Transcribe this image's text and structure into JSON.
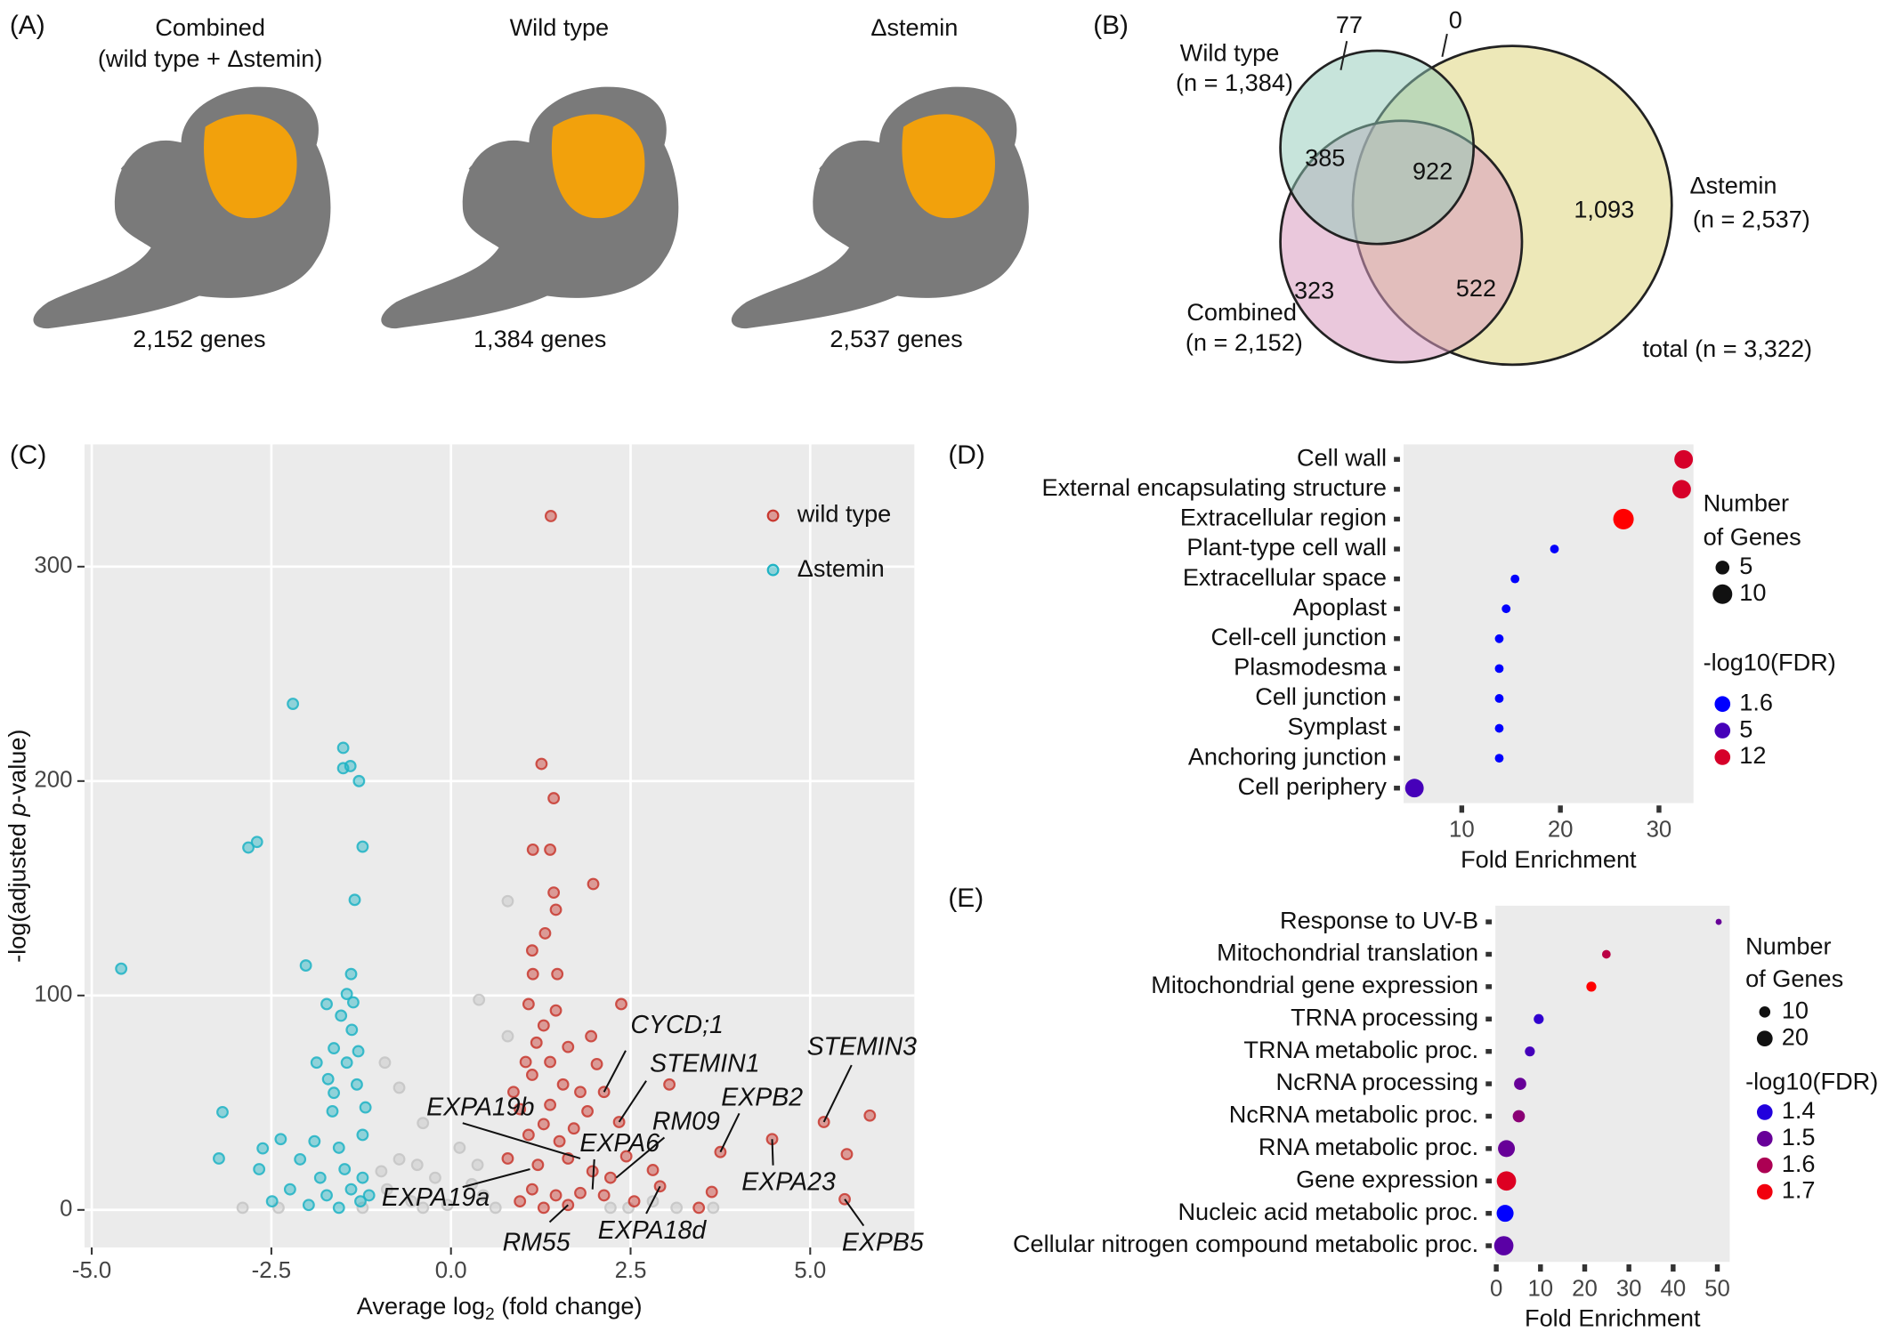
{
  "panel_labels": [
    "(A)",
    "(B)",
    "(C)",
    "(D)",
    "(E)"
  ],
  "umap": {
    "panels": [
      {
        "title": [
          "Combined",
          "(wild type + Δstemin)"
        ],
        "caption": "2,152 genes"
      },
      {
        "title": [
          "Wild type"
        ],
        "caption": "1,384 genes"
      },
      {
        "title": [
          "Δstemin"
        ],
        "caption": "2,537 genes"
      }
    ]
  },
  "venn": {
    "sets": [
      {
        "name": "Wild type",
        "count": "(n = 1,384)"
      },
      {
        "name": "Δstemin",
        "count": "(n = 2,537)"
      },
      {
        "name": "Combined",
        "count": "(n = 2,152)"
      }
    ],
    "regions": {
      "wt_only": "77",
      "wt_stemin": "0",
      "wt_combined": "385",
      "all": "922",
      "stemin_only": "1,093",
      "combined_only": "323",
      "combined_stemin": "522"
    },
    "total": "total (n = 3,322)"
  },
  "chart_data": [
    {
      "type": "scatter",
      "xlabel": [
        "Average log",
        "2",
        " (fold change)"
      ],
      "ylabel": [
        "-log(adjusted ",
        "p",
        "-value)"
      ],
      "xlim": [
        -5.1,
        6.45
      ],
      "ylim": [
        -17.5,
        357
      ],
      "xticks": [
        {
          "value": -5,
          "label": "-5.0"
        },
        {
          "value": -2.5,
          "label": "-2.5"
        },
        {
          "value": 0,
          "label": "0.0"
        },
        {
          "value": 2.5,
          "label": "2.5"
        },
        {
          "value": 5,
          "label": "5.0"
        }
      ],
      "yticks": [
        0,
        100,
        200,
        300
      ],
      "grid": true,
      "legend": "top-right",
      "series": [
        {
          "color": "#c4c4c4",
          "x": [
            0.79,
            0.39,
            0.79,
            -0.92,
            -0.72,
            -0.39,
            0.12,
            -0.72,
            -0.22,
            0.29,
            -2.9,
            -2.4,
            -0.89,
            -0.55,
            -0.05,
            0.45,
            0.62,
            2.47,
            3.14,
            3.65,
            -1.23,
            -0.39,
            2.22,
            2.81,
            -0.97,
            -0.47,
            0.37
          ],
          "values": [
            144,
            98,
            81,
            68.7,
            57,
            40.5,
            29,
            23.6,
            15,
            12,
            1,
            1,
            9.6,
            4,
            2.3,
            6.8,
            1,
            1,
            1,
            1,
            1,
            1,
            1,
            4,
            18,
            21,
            21
          ]
        },
        {
          "name": "wild type",
          "color": "#c8382f",
          "x": [
            1.39,
            1.26,
            1.43,
            1.14,
            1.38,
            1.98,
            1.43,
            1.46,
            1.31,
            1.13,
            1.14,
            1.48,
            2.37,
            1.46,
            1.08,
            1.95,
            1.19,
            1.63,
            2.03,
            1.13,
            1.56,
            3.04,
            5.19,
            5.83,
            5.51,
            4.47,
            5.48,
            3.75,
            3.63,
            3.45,
            2.81,
            2.91,
            2.44,
            2.34,
            1.9,
            2.13,
            0.96,
            1.08,
            1.29,
            1.51,
            1.71,
            0.79,
            1.21,
            1.63,
            1.97,
            2.22,
            1.13,
            1.46,
            1.8,
            2.13,
            0.96,
            1.29,
            1.63,
            2.55,
            1.38,
            1.8,
            1.04,
            1.38,
            1.29,
            0.87
          ],
          "values": [
            323.6,
            208,
            192,
            168,
            168,
            152,
            148,
            140,
            129,
            121,
            110,
            110,
            96,
            93,
            96,
            81,
            78,
            76,
            68,
            63,
            58.5,
            58.5,
            41,
            44,
            26,
            33,
            5,
            27,
            8.4,
            1,
            18.6,
            11,
            25,
            41,
            46,
            55,
            47,
            35,
            40,
            32,
            38,
            24,
            21,
            24,
            18,
            15,
            9.6,
            6.8,
            7.9,
            6.8,
            4,
            1,
            2.3,
            4,
            49,
            55,
            69,
            69,
            86,
            55
          ]
        },
        {
          "name": "Δstemin",
          "color": "#1fb3c4",
          "x": [
            -2.2,
            -1.5,
            -1.5,
            -1.4,
            -1.28,
            -2.7,
            -2.82,
            -1.23,
            -1.34,
            -4.59,
            -2.02,
            -1.39,
            -1.45,
            -1.73,
            -1.53,
            -1.38,
            -1.63,
            -1.29,
            -1.45,
            -1.71,
            -1.31,
            -1.19,
            -3.18,
            -1.65,
            -1.9,
            -2.37,
            -2.62,
            -3.23,
            -2.67,
            -2.1,
            -1.56,
            -1.23,
            -1.82,
            -1.48,
            -1.23,
            -2.24,
            -1.73,
            -1.39,
            -1.14,
            -2.49,
            -1.98,
            -1.56,
            -1.26,
            -1.87,
            -1.36,
            -1.63
          ],
          "values": [
            236,
            215.5,
            206,
            207,
            200,
            171.6,
            169,
            169.4,
            144.6,
            112.5,
            114,
            110,
            100.7,
            96,
            90.6,
            84,
            75.4,
            74,
            68.7,
            61,
            58.5,
            47.8,
            45.6,
            46,
            32,
            33,
            28.7,
            24,
            19,
            23.6,
            29,
            35,
            15,
            19,
            15,
            9.6,
            6.8,
            9.6,
            6.8,
            4,
            2.3,
            1,
            4,
            68.7,
            96.8,
            54.6
          ]
        }
      ],
      "annotations": [
        {
          "text": "CYCD;1",
          "x": 2.13,
          "y": 55
        },
        {
          "text": "STEMIN1",
          "x": 2.34,
          "y": 41
        },
        {
          "text": "EXPA19b",
          "x": 1.8,
          "y": 24
        },
        {
          "text": "EXPA6",
          "x": 1.97,
          "y": 9.6
        },
        {
          "text": "RM09",
          "x": 2.3,
          "y": 15
        },
        {
          "text": "EXPB2",
          "x": 3.75,
          "y": 27
        },
        {
          "text": "STEMIN3",
          "x": 5.19,
          "y": 41
        },
        {
          "text": "EXPA23",
          "x": 4.47,
          "y": 33
        },
        {
          "text": "EXPA19a",
          "x": 1.1,
          "y": 19
        },
        {
          "text": "RM55",
          "x": 1.63,
          "y": 2.3
        },
        {
          "text": "EXPA18d",
          "x": 2.91,
          "y": 11
        },
        {
          "text": "EXPB5",
          "x": 5.48,
          "y": 5
        }
      ]
    },
    {
      "type": "dot",
      "categories": [
        "Cell wall",
        "External encapsulating structure",
        "Extracellular region",
        "Plant-type cell wall",
        "Extracellular space",
        "Apoplast",
        "Cell-cell junction",
        "Plasmodesma",
        "Cell junction",
        "Symplast",
        "Anchoring junction",
        "Cell periphery"
      ],
      "x": [
        32.5,
        32.3,
        26.4,
        19.4,
        15.4,
        14.5,
        13.8,
        13.8,
        13.8,
        13.8,
        13.8,
        5.2
      ],
      "sizes": [
        9,
        9,
        11,
        2,
        2,
        2,
        2,
        2,
        2,
        2,
        2,
        9
      ],
      "color_values": [
        12,
        12,
        14,
        1.8,
        1.7,
        1.7,
        1.6,
        1.6,
        1.6,
        1.6,
        1.6,
        5
      ],
      "colors": [
        "#0000ff",
        "#ff0000"
      ],
      "xlabel": "Fold Enrichment",
      "xlim": [
        4.1,
        33.5
      ],
      "xticks": [
        10,
        20,
        30
      ],
      "size_legend": {
        "title": [
          "Number",
          "of Genes"
        ],
        "values": [
          5,
          10
        ]
      },
      "color_legend": {
        "title": "-log10(FDR)",
        "values": [
          1.6,
          5,
          12
        ]
      }
    },
    {
      "type": "dot",
      "categories": [
        "Response to UV-B",
        "Mitochondrial translation",
        "Mitochondrial gene expression",
        "TRNA processing",
        "TRNA metabolic proc.",
        "NcRNA processing",
        "NcRNA metabolic proc.",
        "RNA metabolic proc.",
        "Gene expression",
        "Nucleic acid metabolic proc.",
        "Cellular nitrogen compound metabolic proc."
      ],
      "x": [
        50.3,
        24.9,
        21.5,
        9.6,
        7.6,
        5.4,
        5.1,
        2.3,
        2.3,
        2.0,
        1.7
      ],
      "sizes": [
        3,
        6,
        8,
        8,
        8,
        12,
        12,
        23,
        30,
        23,
        30
      ],
      "color_values": [
        1.5,
        1.62,
        1.72,
        1.42,
        1.45,
        1.5,
        1.55,
        1.5,
        1.67,
        1.35,
        1.48
      ],
      "colors": [
        "#0000ff",
        "#ff0000"
      ],
      "xlabel": "Fold Enrichment",
      "xlim": [
        -0.2,
        52.8
      ],
      "xticks": [
        0,
        10,
        20,
        30,
        40,
        50
      ],
      "size_legend": {
        "title": [
          "Number",
          "of Genes"
        ],
        "values": [
          10,
          20
        ]
      },
      "color_legend": {
        "title": "-log10(FDR)",
        "values": [
          1.4,
          1.5,
          1.6,
          1.7
        ]
      }
    }
  ]
}
